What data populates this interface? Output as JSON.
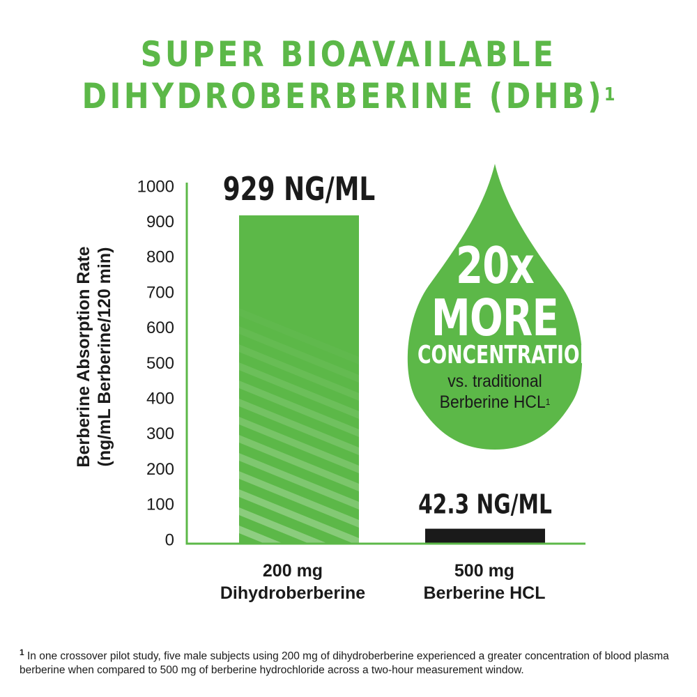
{
  "title": {
    "line1": "SUPER BIOAVAILABLE",
    "line2": "DIHYDROBERBERINE (DHB)",
    "sup": "1"
  },
  "colors": {
    "green": "#5cb848",
    "dark": "#1a1a1a"
  },
  "chart_data": {
    "type": "bar",
    "categories": [
      "200 mg Dihydroberberine",
      "500 mg Berberine HCL"
    ],
    "category_lines": [
      [
        "200 mg",
        "Dihydroberberine"
      ],
      [
        "500 mg",
        "Berberine HCL"
      ]
    ],
    "values": [
      929,
      42.3
    ],
    "data_labels": [
      "929 NG/ML",
      "42.3 NG/ML"
    ],
    "bar_colors": [
      "#5cb848",
      "#1a1a1a"
    ],
    "ylabel_lines": [
      "Berberine Absorption Rate",
      "(ng/mL Berberine/120 min)"
    ],
    "ylim": [
      0,
      1000
    ],
    "yticks": [
      0,
      100,
      200,
      300,
      400,
      500,
      600,
      700,
      800,
      900,
      1000
    ],
    "grid": false
  },
  "callout": {
    "line1": "20x",
    "line2": "MORE",
    "line3": "CONCENTRATION",
    "line4": "vs. traditional",
    "line5": "Berberine HCL",
    "sup": "1"
  },
  "footnote": {
    "marker": "1",
    "text": " In one crossover pilot study, five male subjects using 200 mg of dihydroberberine experienced a greater concentration of blood plasma berberine when compared to 500 mg of berberine hydrochloride across a two-hour measurement window."
  }
}
